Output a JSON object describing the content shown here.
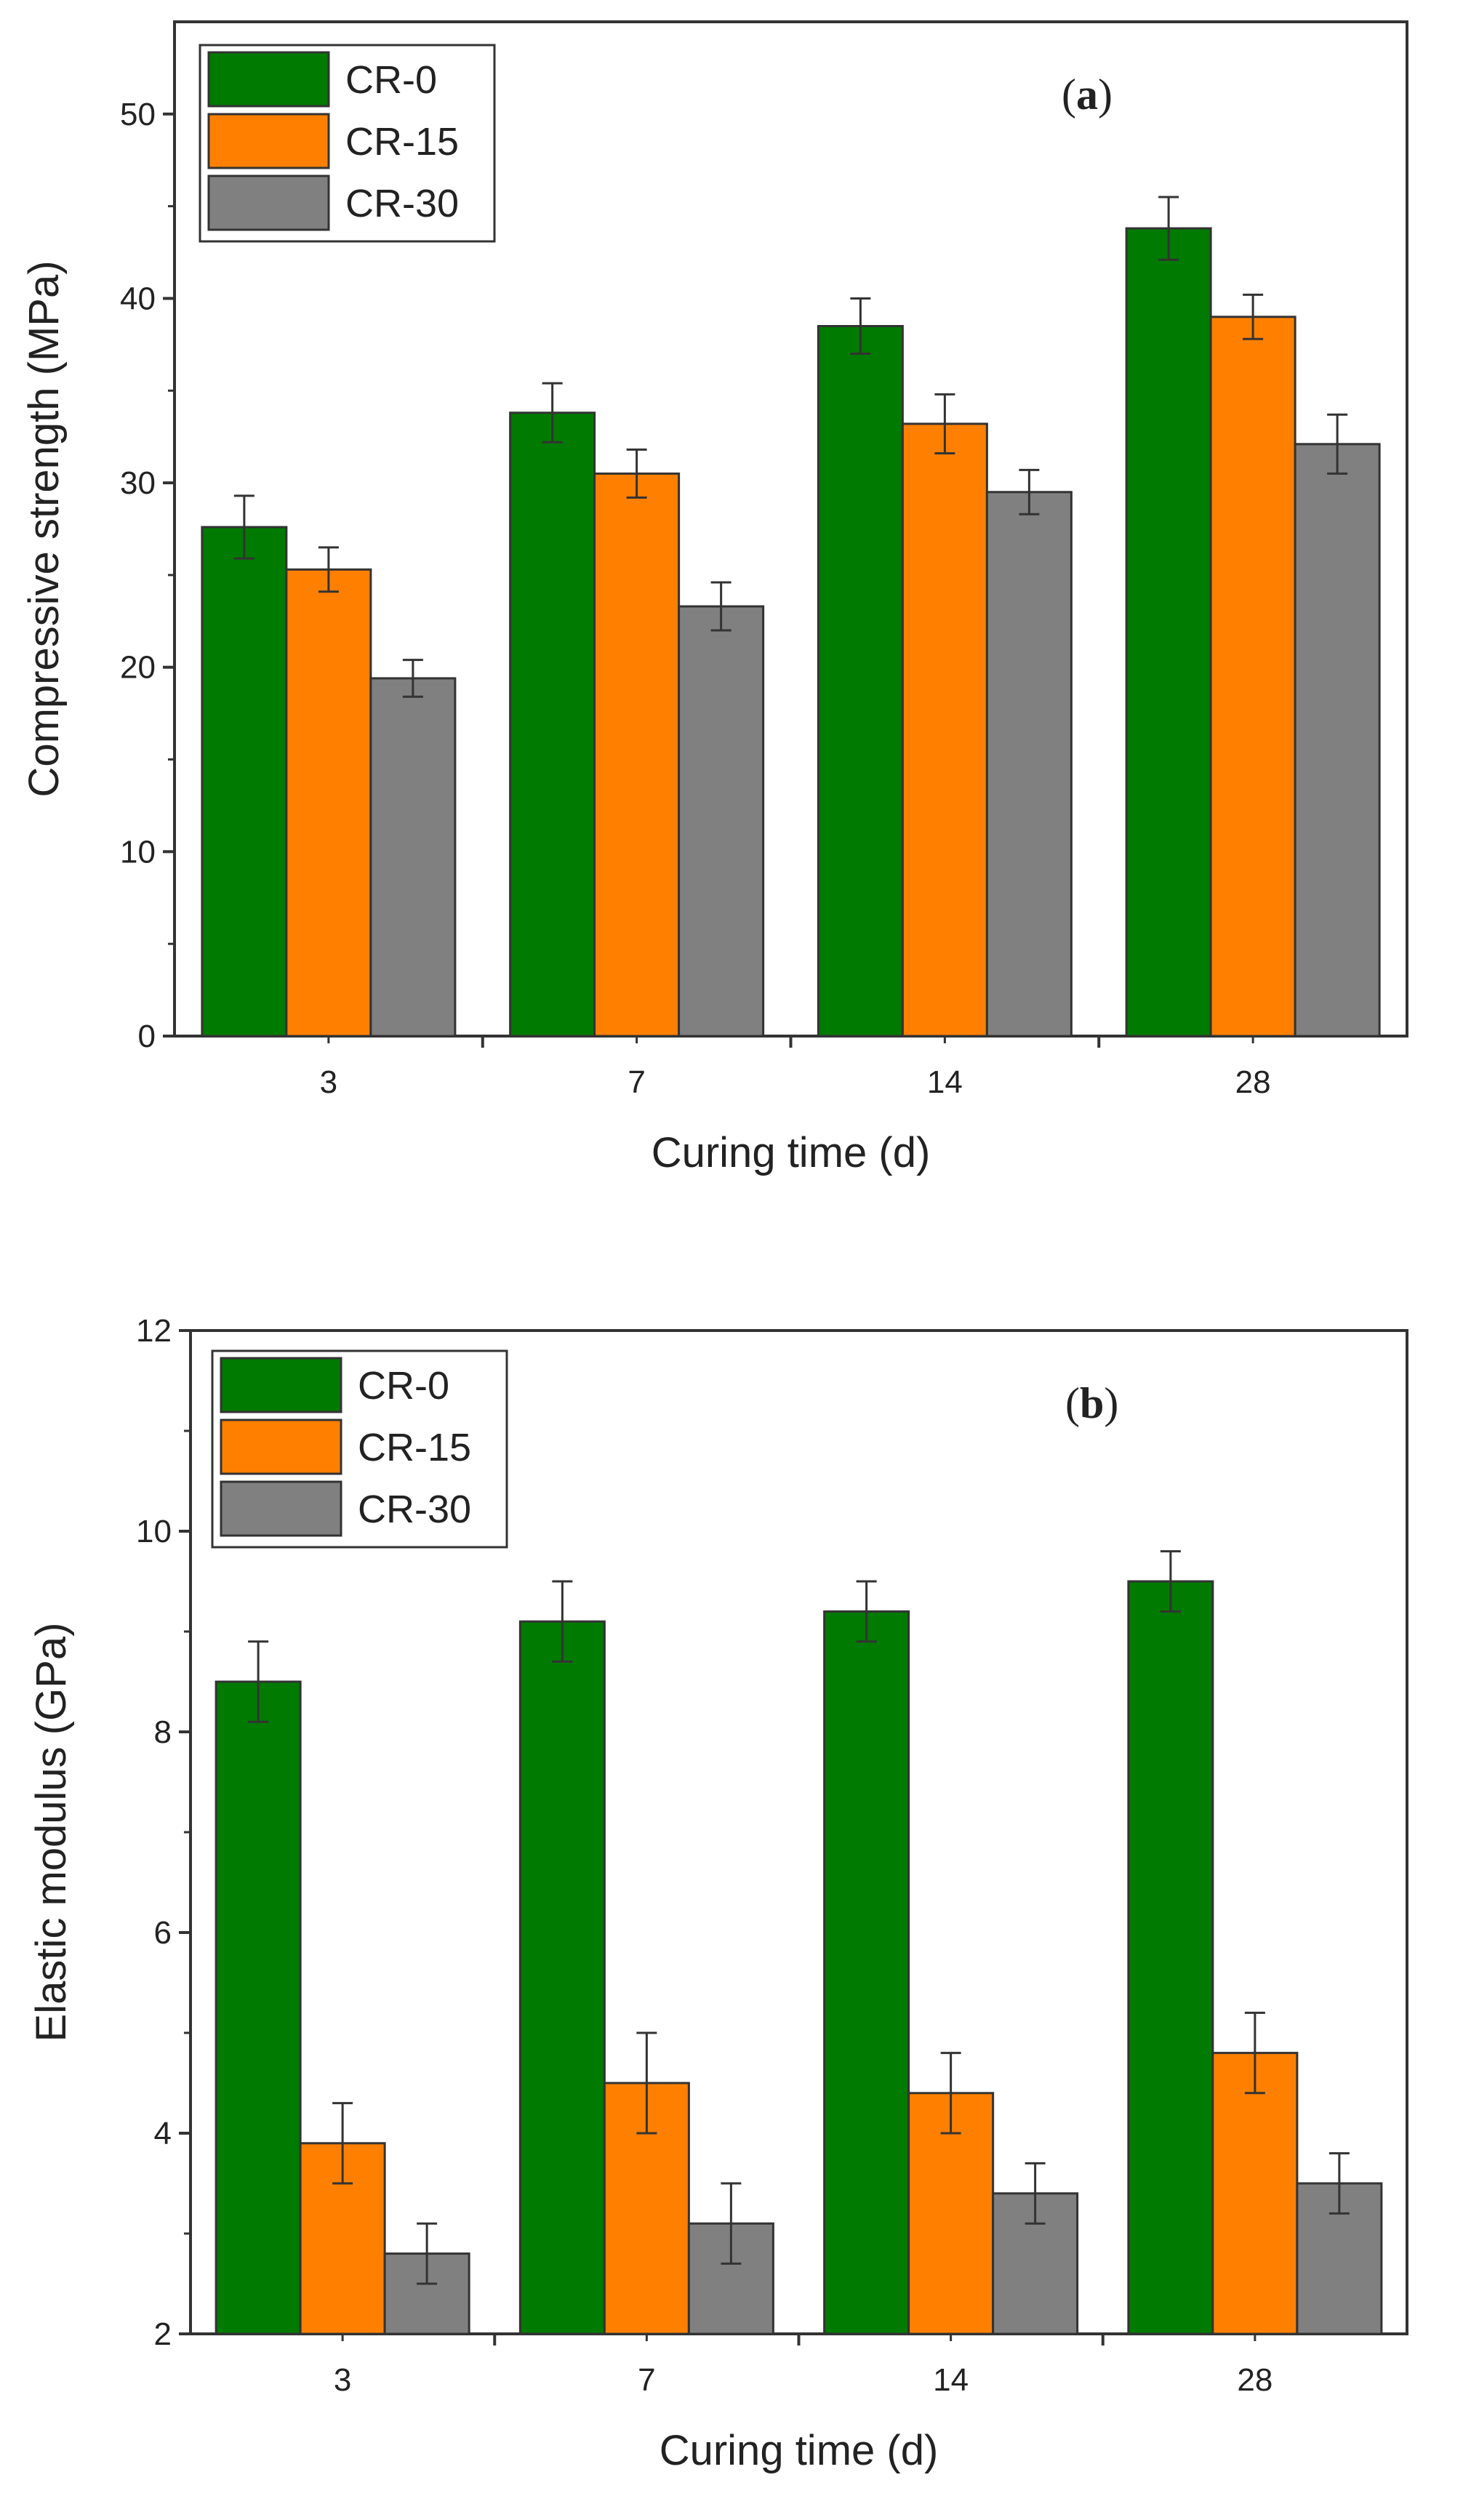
{
  "chart_data": [
    {
      "type": "bar",
      "panel_label": "a",
      "categories": [
        "3",
        "7",
        "14",
        "28"
      ],
      "series": [
        {
          "name": "CR-0",
          "color": "#007A00",
          "values": [
            27.6,
            33.8,
            38.5,
            43.8
          ],
          "errors": [
            1.7,
            1.6,
            1.5,
            1.7
          ]
        },
        {
          "name": "CR-15",
          "color": "#FF8000",
          "values": [
            25.3,
            30.5,
            33.2,
            39.0
          ],
          "errors": [
            1.2,
            1.3,
            1.6,
            1.2
          ]
        },
        {
          "name": "CR-30",
          "color": "#808080",
          "values": [
            19.4,
            23.3,
            29.5,
            32.1
          ],
          "errors": [
            1.0,
            1.3,
            1.2,
            1.6
          ]
        }
      ],
      "xlabel": "Curing time (d)",
      "ylabel": "Compressive strength (MPa)",
      "ylim": [
        0,
        55
      ],
      "yticks": [
        "0",
        "10",
        "20",
        "30",
        "40",
        "50"
      ],
      "ytick_values": [
        0,
        10,
        20,
        30,
        40,
        50
      ],
      "legend_position": "top-left",
      "grid": false
    },
    {
      "type": "bar",
      "panel_label": "b",
      "categories": [
        "3",
        "7",
        "14",
        "28"
      ],
      "series": [
        {
          "name": "CR-0",
          "color": "#007A00",
          "values": [
            8.5,
            9.1,
            9.2,
            9.5
          ],
          "errors": [
            0.4,
            0.4,
            0.3,
            0.3
          ]
        },
        {
          "name": "CR-15",
          "color": "#FF8000",
          "values": [
            3.9,
            4.5,
            4.4,
            4.8
          ],
          "errors": [
            0.4,
            0.5,
            0.4,
            0.4
          ]
        },
        {
          "name": "CR-30",
          "color": "#808080",
          "values": [
            2.8,
            3.1,
            3.4,
            3.5
          ],
          "errors": [
            0.3,
            0.4,
            0.3,
            0.3
          ]
        }
      ],
      "xlabel": "Curing time (d)",
      "ylabel": "Elastic modulus (GPa)",
      "ylim": [
        2,
        12
      ],
      "yticks": [
        "2",
        "4",
        "6",
        "8",
        "10",
        "12"
      ],
      "ytick_values": [
        2,
        4,
        6,
        8,
        10,
        12
      ],
      "legend_position": "top-left",
      "grid": false
    }
  ]
}
